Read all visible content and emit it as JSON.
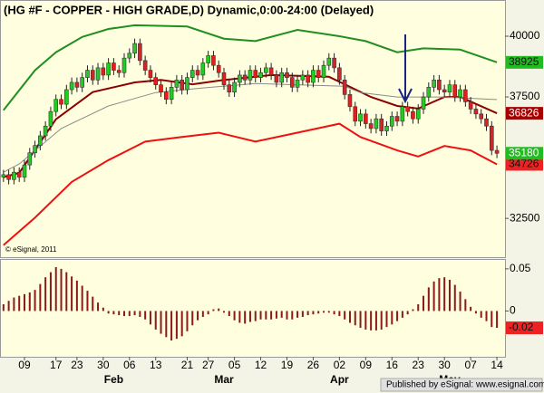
{
  "chart_data": [
    {
      "type": "candlestick",
      "title": "(HG #F - COPPER - HIGH GRADE,D) Dynamic,0:00-24:00 (Delayed)",
      "watermark": "© eSignal, 2011",
      "footer": "Published by eSignal: www.esignal.com",
      "up_color": "#22cc22",
      "down_color": "#e02020",
      "close_label_color": "#22bb22",
      "open": [
        34200,
        34300,
        34100,
        34400,
        34200,
        34700,
        35200,
        35500,
        35900,
        36300,
        36900,
        37400,
        37200,
        37800,
        38100,
        37900,
        38300,
        38600,
        38200,
        38700,
        38400,
        38900,
        38600,
        38500,
        39100,
        39300,
        39700,
        39000,
        38600,
        38300,
        38000,
        37700,
        37400,
        37900,
        38200,
        37800,
        38300,
        38600,
        38400,
        38900,
        39200,
        38800,
        38500,
        38000,
        37700,
        38100,
        38400,
        38200,
        38600,
        38300,
        38500,
        38700,
        38400,
        38100,
        38500,
        38300,
        37900,
        38200,
        38400,
        38100,
        38600,
        38300,
        38800,
        39100,
        38700,
        38200,
        37600,
        37100,
        36500,
        36800,
        36400,
        36200,
        36600,
        36100,
        36300,
        36700,
        36500,
        37100,
        36900,
        36600,
        37000,
        37500,
        37900,
        38200,
        37800,
        37700,
        38000,
        37500,
        37800,
        37300,
        37000,
        36800,
        36600,
        36300,
        35300
      ],
      "high": [
        34500,
        34500,
        34600,
        34600,
        34900,
        35400,
        35700,
        36100,
        36500,
        37100,
        37600,
        37600,
        38000,
        38300,
        38300,
        38500,
        38800,
        38800,
        38900,
        38900,
        39100,
        39100,
        38800,
        39300,
        39500,
        39900,
        39900,
        39200,
        38800,
        38500,
        38200,
        37900,
        38100,
        38400,
        38400,
        38500,
        38800,
        38800,
        39100,
        39400,
        39400,
        39000,
        38700,
        38200,
        38300,
        38600,
        38600,
        38800,
        38800,
        38700,
        38900,
        38900,
        38600,
        38700,
        38700,
        38500,
        38400,
        38600,
        38600,
        38800,
        38800,
        39000,
        39300,
        39300,
        38900,
        38400,
        37800,
        37300,
        37000,
        37000,
        36600,
        36800,
        36800,
        36500,
        36900,
        36900,
        37300,
        37300,
        37100,
        37200,
        37700,
        38100,
        38400,
        38400,
        38000,
        38200,
        38200,
        38000,
        38000,
        37500,
        37200,
        37000,
        36800,
        36500,
        35500
      ],
      "low": [
        34000,
        33900,
        33900,
        34000,
        34000,
        34500,
        35000,
        35300,
        35700,
        36100,
        36700,
        37000,
        37000,
        37600,
        37700,
        37700,
        38100,
        38000,
        38000,
        38200,
        38200,
        38400,
        38300,
        38300,
        38900,
        39100,
        38800,
        38400,
        38100,
        37800,
        37500,
        37200,
        37200,
        37700,
        37600,
        37600,
        38100,
        38200,
        38200,
        38700,
        38600,
        38300,
        37800,
        37500,
        37500,
        37900,
        38000,
        38000,
        38100,
        38100,
        38300,
        38200,
        37900,
        37900,
        38100,
        37700,
        37700,
        38000,
        37900,
        37900,
        38100,
        38100,
        38600,
        38500,
        38000,
        37400,
        36900,
        36300,
        36300,
        36200,
        36000,
        36000,
        35900,
        35900,
        36100,
        36300,
        36300,
        36700,
        36400,
        36400,
        36800,
        37300,
        37700,
        37600,
        37500,
        37500,
        37300,
        37300,
        37100,
        36800,
        36600,
        36400,
        36100,
        35100,
        34980
      ],
      "close": [
        34300,
        34100,
        34400,
        34200,
        34700,
        35200,
        35500,
        35900,
        36300,
        36900,
        37400,
        37200,
        37800,
        38100,
        37900,
        38300,
        38600,
        38200,
        38700,
        38400,
        38900,
        38600,
        38500,
        39100,
        39300,
        39700,
        39000,
        38600,
        38300,
        38000,
        37700,
        37400,
        37900,
        38200,
        37800,
        38300,
        38600,
        38400,
        38900,
        39200,
        38800,
        38500,
        38000,
        37700,
        38100,
        38400,
        38200,
        38600,
        38300,
        38500,
        38700,
        38400,
        38100,
        38500,
        38300,
        37900,
        38200,
        38400,
        38100,
        38600,
        38300,
        38800,
        39100,
        38700,
        38200,
        37600,
        37100,
        36500,
        36800,
        36400,
        36200,
        36600,
        36100,
        36300,
        36700,
        36500,
        37100,
        36900,
        36600,
        37000,
        37500,
        37900,
        38200,
        37800,
        37700,
        38000,
        37500,
        37800,
        37300,
        37000,
        36800,
        36600,
        36300,
        35300,
        35180
      ],
      "lines": [
        {
          "color": "#1f8f1f",
          "label_color": "#22bb22",
          "x": [
            0,
            6,
            10,
            15,
            20,
            25,
            35,
            42,
            48,
            56,
            64,
            69,
            75,
            80,
            87,
            94
          ],
          "values": [
            36950,
            38600,
            39340,
            39970,
            40300,
            40450,
            40400,
            39900,
            39800,
            40260,
            40000,
            39800,
            39340,
            39500,
            39450,
            38925
          ]
        },
        {
          "color": "#ee1111",
          "label_color": "#ee2222",
          "x": [
            0,
            6,
            13,
            20,
            27,
            34,
            41,
            48,
            56,
            64,
            68,
            75,
            79,
            84,
            89,
            94
          ],
          "values": [
            31400,
            32530,
            34000,
            34900,
            35660,
            35850,
            36030,
            35660,
            36030,
            36400,
            35850,
            35300,
            35050,
            35480,
            35300,
            34726
          ]
        },
        {
          "color": "#8b0000",
          "label_color": "#aa0000",
          "x": [
            0,
            3,
            10,
            17,
            25,
            30,
            36,
            42,
            51,
            62,
            65,
            70,
            75,
            79,
            84,
            87,
            94
          ],
          "values": [
            34200,
            34370,
            36580,
            37700,
            38100,
            38200,
            38020,
            38200,
            38400,
            38330,
            38020,
            37500,
            37130,
            37020,
            37500,
            37500,
            36826
          ]
        },
        {
          "color": "#8a8a8a",
          "x": [
            0,
            3,
            11,
            20,
            29,
            38,
            48,
            65,
            68,
            75,
            84,
            94
          ],
          "values": [
            34400,
            34740,
            36200,
            37130,
            37680,
            37870,
            38050,
            37940,
            37680,
            37500,
            37500,
            37390
          ]
        }
      ],
      "xlim": [
        -0.66,
        95.54
      ],
      "ylim": [
        30940,
        41380
      ],
      "yticks": [
        32500,
        37500,
        40000
      ],
      "xticks": [
        {
          "value": 4,
          "label": "09"
        },
        {
          "value": 10,
          "label": "17"
        },
        {
          "value": 14,
          "label": "23"
        },
        {
          "value": 19,
          "label": "30"
        },
        {
          "value": 24,
          "label": "06"
        },
        {
          "value": 29,
          "label": "13"
        },
        {
          "value": 35,
          "label": "21"
        },
        {
          "value": 39,
          "label": "27"
        },
        {
          "value": 44,
          "label": "05"
        },
        {
          "value": 49,
          "label": "12"
        },
        {
          "value": 54,
          "label": "19"
        },
        {
          "value": 59,
          "label": "26"
        },
        {
          "value": 64,
          "label": "02"
        },
        {
          "value": 69,
          "label": "09"
        },
        {
          "value": 74,
          "label": "16"
        },
        {
          "value": 79,
          "label": "23"
        },
        {
          "value": 84,
          "label": "30"
        },
        {
          "value": 89,
          "label": "07"
        },
        {
          "value": 94,
          "label": "14"
        }
      ],
      "month_ticks": [
        {
          "value": 21,
          "label": "Feb"
        },
        {
          "value": 42,
          "label": "Mar"
        },
        {
          "value": 64,
          "label": "Apr"
        },
        {
          "value": 85,
          "label": "May"
        }
      ]
    },
    {
      "type": "bar",
      "color": "#8b1a1a",
      "label_color": "#ee2222",
      "values": [
        0.008,
        0.012,
        0.016,
        0.018,
        0.02,
        0.022,
        0.025,
        0.032,
        0.04,
        0.046,
        0.052,
        0.05,
        0.046,
        0.041,
        0.036,
        0.03,
        0.024,
        0.017,
        0.01,
        0.004,
        -0.003,
        -0.004,
        -0.005,
        -0.006,
        -0.006,
        -0.005,
        -0.007,
        -0.01,
        -0.016,
        -0.022,
        -0.027,
        -0.031,
        -0.035,
        -0.033,
        -0.03,
        -0.024,
        -0.017,
        -0.011,
        -0.007,
        -0.004,
        0.002,
        0.003,
        -0.002,
        -0.006,
        -0.011,
        -0.014,
        -0.015,
        -0.013,
        -0.012,
        -0.01,
        -0.01,
        -0.01,
        -0.009,
        -0.008,
        -0.01,
        -0.01,
        -0.008,
        -0.007,
        -0.005,
        -0.004,
        -0.003,
        -0.002,
        -0.002,
        -0.004,
        -0.006,
        -0.01,
        -0.014,
        -0.017,
        -0.02,
        -0.022,
        -0.023,
        -0.023,
        -0.022,
        -0.019,
        -0.016,
        -0.012,
        -0.008,
        -0.004,
        0.002,
        0.008,
        0.018,
        0.028,
        0.035,
        0.039,
        0.04,
        0.037,
        0.031,
        0.023,
        0.014,
        0.005,
        -0.003,
        -0.008,
        -0.012,
        -0.019,
        -0.02
      ],
      "xlim": [
        -0.66,
        95.54
      ],
      "ylim": [
        -0.0543,
        0.0606
      ],
      "yticks": [
        0.05,
        0
      ]
    }
  ]
}
